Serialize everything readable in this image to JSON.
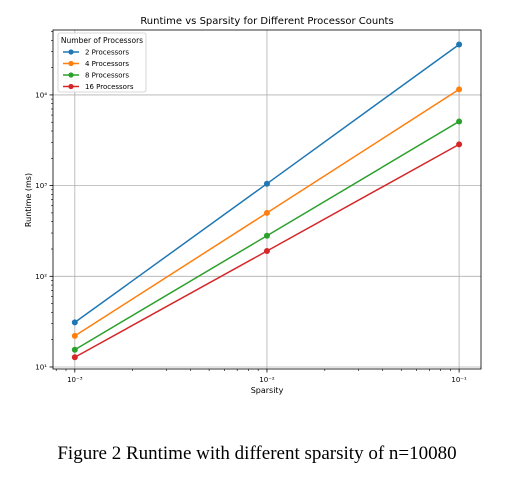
{
  "chart_data": {
    "type": "line",
    "title": "Runtime vs Sparsity for Different Processor Counts",
    "xlabel": "Sparsity",
    "ylabel": "Runtime (ms)",
    "x_scale": "log",
    "y_scale": "log",
    "x": [
      0.001,
      0.01,
      0.1
    ],
    "xlim": [
      0.00077,
      0.13
    ],
    "ylim": [
      9.5,
      52000
    ],
    "x_ticks": [
      {
        "value": 0.001,
        "label": "10⁻³"
      },
      {
        "value": 0.01,
        "label": "10⁻²"
      },
      {
        "value": 0.1,
        "label": "10⁻¹"
      }
    ],
    "y_ticks": [
      {
        "value": 10,
        "label": "10¹"
      },
      {
        "value": 100,
        "label": "10²"
      },
      {
        "value": 1000,
        "label": "10³"
      },
      {
        "value": 10000,
        "label": "10⁴"
      }
    ],
    "grid": true,
    "legend_title": "Number of Processors",
    "legend_position": "top-left",
    "series": [
      {
        "name": "2 Processors",
        "color": "#1f77b4",
        "values": [
          31,
          1050,
          36000
        ]
      },
      {
        "name": "4 Processors",
        "color": "#ff7f0e",
        "values": [
          22,
          500,
          11500
        ]
      },
      {
        "name": "8 Processors",
        "color": "#2ca02c",
        "values": [
          15.5,
          280,
          5100
        ]
      },
      {
        "name": "16 Processors",
        "color": "#d62728",
        "values": [
          12.8,
          190,
          2850
        ]
      }
    ]
  },
  "caption": "Figure 2 Runtime with different sparsity of n=10080"
}
